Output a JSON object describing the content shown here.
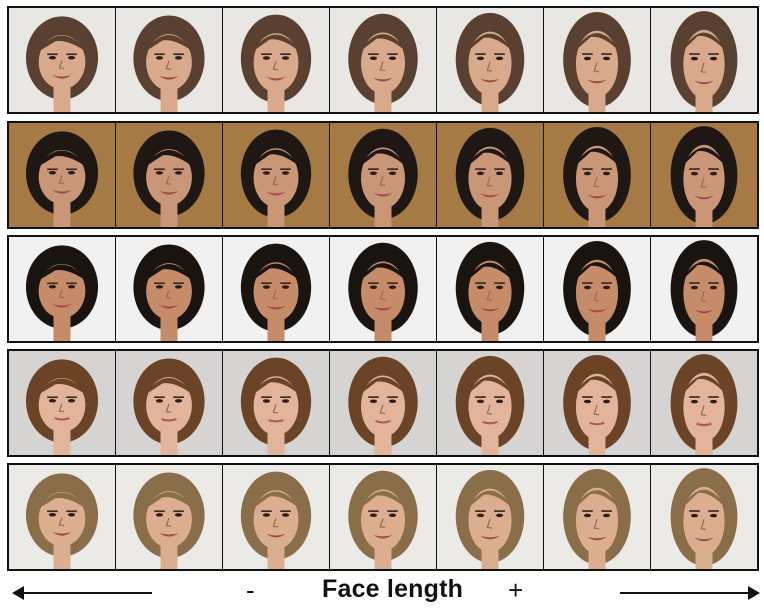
{
  "caption": {
    "label": "Face length",
    "minus": "-",
    "plus": "+"
  },
  "rows": [
    {
      "subject": "woman-wavy-brown-hair",
      "bg": "#e9e7e3",
      "hair": "#5a4030",
      "skin": "#d9a98b",
      "expression": "smile",
      "frames": 7
    },
    {
      "subject": "woman-curly-dark-hair",
      "bg": "#a57a45",
      "hair": "#1f1713",
      "skin": "#c99677",
      "expression": "smile",
      "frames": 7
    },
    {
      "subject": "man-short-dark-hair",
      "bg": "#f1f1f1",
      "hair": "#1a1411",
      "skin": "#c68c6a",
      "expression": "smile",
      "frames": 7
    },
    {
      "subject": "woman-long-auburn-hair",
      "bg": "#d6d4d2",
      "hair": "#6b4327",
      "skin": "#e2b59b",
      "expression": "neutral",
      "frames": 7
    },
    {
      "subject": "woman-blonde-hair",
      "bg": "#eceae6",
      "hair": "#8a6d49",
      "skin": "#dcae90",
      "expression": "smile",
      "frames": 7
    }
  ]
}
